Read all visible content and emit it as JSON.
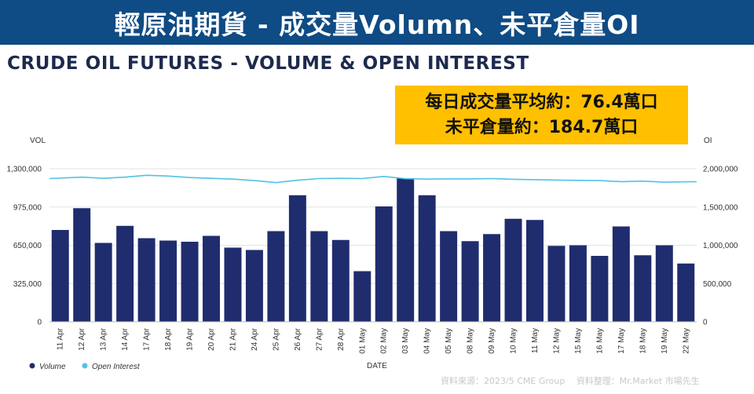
{
  "header": {
    "banner_title": "輕原油期貨 - 成交量Volumn、未平倉量OI",
    "chart_subtitle": "CRUDE OIL FUTURES - VOLUME & OPEN INTEREST"
  },
  "callout": {
    "line1": "每日成交量平均約：76.4萬口",
    "line2": "未平倉量約：184.7萬口"
  },
  "source_note": "資料來源：2023/5 CME Group　 資料整理：Mr.Market 市場先生",
  "colors": {
    "banner": "#0f4b84",
    "volume_bar": "#1f2d6e",
    "open_interest_line": "#4fc3e8",
    "callout_bg": "#ffc000"
  },
  "chart_data": {
    "type": "bar",
    "xlabel": "DATE",
    "ylabel_left": "VOL",
    "ylabel_right": "OI",
    "ylim_left": [
      0,
      1300000
    ],
    "ylim_right": [
      0,
      2000000
    ],
    "yticks_left": [
      0,
      325000,
      650000,
      975000,
      1300000
    ],
    "yticks_left_labels": [
      "0",
      "325,000",
      "650,000",
      "975,000",
      "1,300,000"
    ],
    "yticks_right": [
      0,
      500000,
      1000000,
      1500000,
      2000000
    ],
    "yticks_right_labels": [
      "0",
      "500,000",
      "1,000,000",
      "1,500,000",
      "2,000,000"
    ],
    "grid": true,
    "legend_position": "bottom-left",
    "categories": [
      "11 Apr",
      "12 Apr",
      "13 Apr",
      "14 Apr",
      "17 Apr",
      "18 Apr",
      "19 Apr",
      "20 Apr",
      "21 Apr",
      "24 Apr",
      "25 Apr",
      "26 Apr",
      "27 Apr",
      "28 Apr",
      "01 May",
      "02 May",
      "03 May",
      "04 May",
      "05 May",
      "08 May",
      "09 May",
      "10 May",
      "11 May",
      "12 May",
      "15 May",
      "16 May",
      "17 May",
      "18 May",
      "19 May",
      "22 May"
    ],
    "series": [
      {
        "name": "Volume",
        "axis": "left",
        "type": "bar",
        "values": [
          780000,
          965000,
          670000,
          815000,
          710000,
          690000,
          680000,
          730000,
          630000,
          610000,
          770000,
          1075000,
          770000,
          695000,
          430000,
          980000,
          1220000,
          1075000,
          770000,
          685000,
          745000,
          875000,
          865000,
          645000,
          650000,
          560000,
          810000,
          565000,
          650000,
          495000
        ]
      },
      {
        "name": "Open Interest",
        "axis": "right",
        "type": "line",
        "values": [
          1872000,
          1890000,
          1875000,
          1890000,
          1915000,
          1905000,
          1885000,
          1875000,
          1865000,
          1845000,
          1818000,
          1850000,
          1872000,
          1875000,
          1872000,
          1900000,
          1870000,
          1865000,
          1868000,
          1868000,
          1872000,
          1863000,
          1857000,
          1852000,
          1848000,
          1845000,
          1832000,
          1838000,
          1825000,
          1830000
        ]
      }
    ]
  }
}
